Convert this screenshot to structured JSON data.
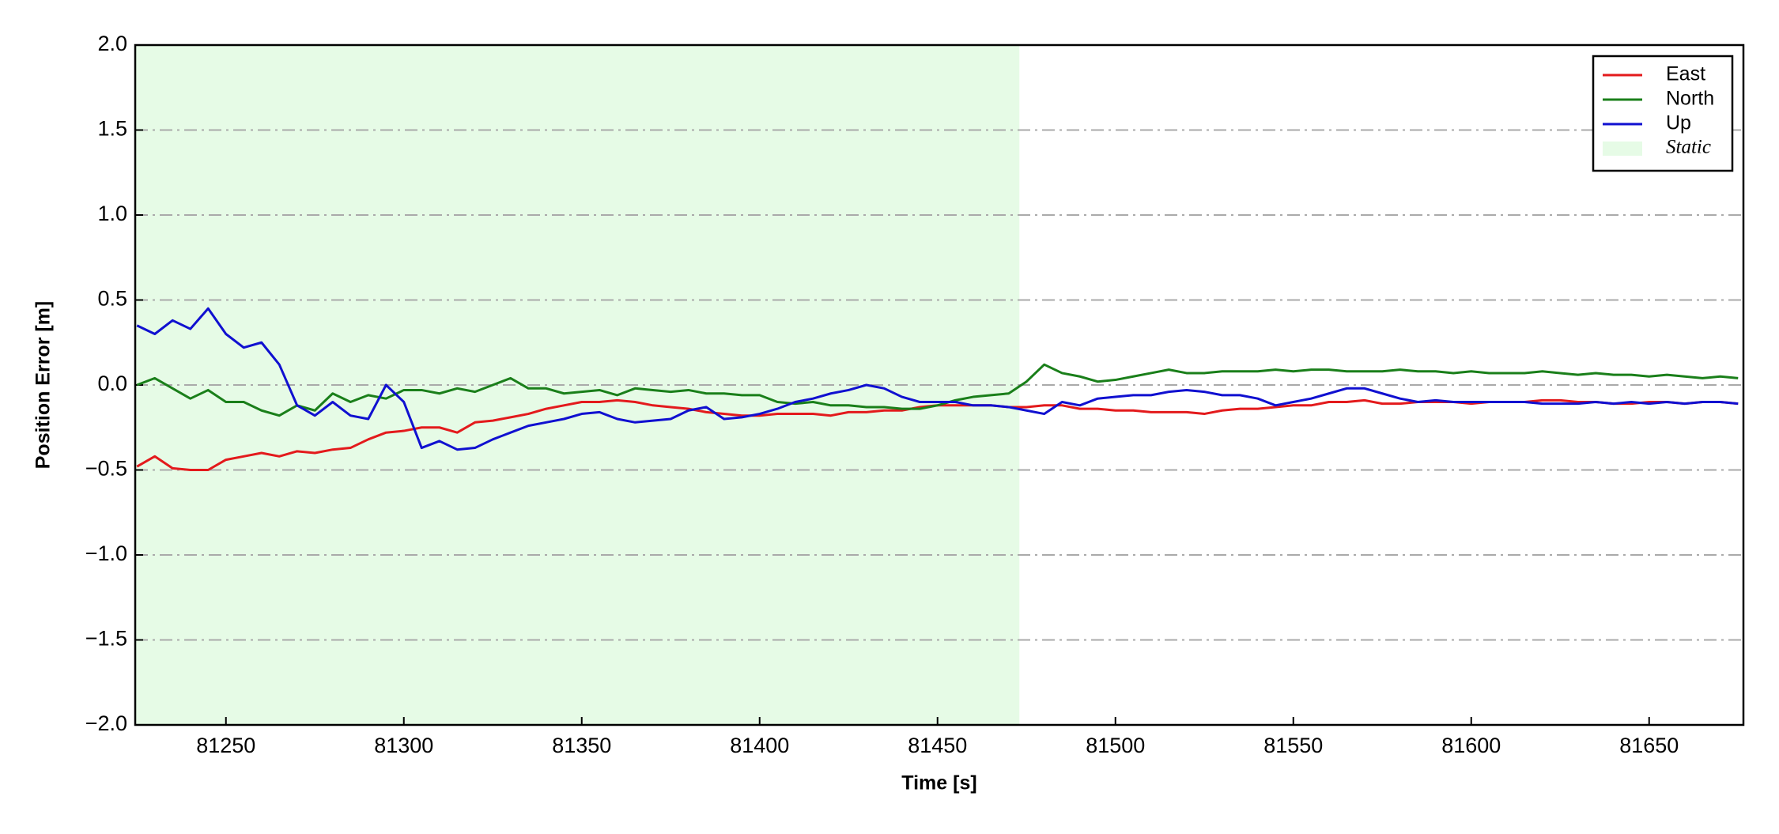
{
  "chart_data": {
    "type": "line",
    "xlabel": "Time [s]",
    "ylabel": "Position Error [m]",
    "x": [
      81225,
      81230,
      81235,
      81240,
      81245,
      81250,
      81255,
      81260,
      81265,
      81270,
      81275,
      81280,
      81285,
      81290,
      81295,
      81300,
      81305,
      81310,
      81315,
      81320,
      81325,
      81330,
      81335,
      81340,
      81345,
      81350,
      81355,
      81360,
      81365,
      81370,
      81375,
      81380,
      81385,
      81390,
      81395,
      81400,
      81405,
      81410,
      81415,
      81420,
      81425,
      81430,
      81435,
      81440,
      81445,
      81450,
      81455,
      81460,
      81465,
      81470,
      81475,
      81480,
      81485,
      81490,
      81495,
      81500,
      81505,
      81510,
      81515,
      81520,
      81525,
      81530,
      81535,
      81540,
      81545,
      81550,
      81555,
      81560,
      81565,
      81570,
      81575,
      81580,
      81585,
      81590,
      81595,
      81600,
      81605,
      81610,
      81615,
      81620,
      81625,
      81630,
      81635,
      81640,
      81645,
      81650,
      81655,
      81660,
      81665,
      81670,
      81675
    ],
    "series": [
      {
        "name": "East",
        "color": "#e31a1c",
        "values": [
          -0.48,
          -0.42,
          -0.49,
          -0.5,
          -0.5,
          -0.44,
          -0.42,
          -0.4,
          -0.42,
          -0.39,
          -0.4,
          -0.38,
          -0.37,
          -0.32,
          -0.28,
          -0.27,
          -0.25,
          -0.25,
          -0.28,
          -0.22,
          -0.21,
          -0.19,
          -0.17,
          -0.14,
          -0.12,
          -0.1,
          -0.1,
          -0.09,
          -0.1,
          -0.12,
          -0.13,
          -0.14,
          -0.16,
          -0.17,
          -0.18,
          -0.18,
          -0.17,
          -0.17,
          -0.17,
          -0.18,
          -0.16,
          -0.16,
          -0.15,
          -0.15,
          -0.13,
          -0.12,
          -0.12,
          -0.12,
          -0.12,
          -0.13,
          -0.13,
          -0.12,
          -0.12,
          -0.14,
          -0.14,
          -0.15,
          -0.15,
          -0.16,
          -0.16,
          -0.16,
          -0.17,
          -0.15,
          -0.14,
          -0.14,
          -0.13,
          -0.12,
          -0.12,
          -0.1,
          -0.1,
          -0.09,
          -0.11,
          -0.11,
          -0.1,
          -0.1,
          -0.1,
          -0.11,
          -0.1,
          -0.1,
          -0.1,
          -0.09,
          -0.09,
          -0.1,
          -0.1,
          -0.11,
          -0.11,
          -0.1,
          -0.1,
          -0.11,
          -0.1,
          -0.1,
          -0.11
        ]
      },
      {
        "name": "North",
        "color": "#1a7f1a",
        "values": [
          0.0,
          0.04,
          -0.02,
          -0.08,
          -0.03,
          -0.1,
          -0.1,
          -0.15,
          -0.18,
          -0.12,
          -0.15,
          -0.05,
          -0.1,
          -0.06,
          -0.08,
          -0.03,
          -0.03,
          -0.05,
          -0.02,
          -0.04,
          0.0,
          0.04,
          -0.02,
          -0.02,
          -0.05,
          -0.04,
          -0.03,
          -0.06,
          -0.02,
          -0.03,
          -0.04,
          -0.03,
          -0.05,
          -0.05,
          -0.06,
          -0.06,
          -0.1,
          -0.11,
          -0.1,
          -0.12,
          -0.12,
          -0.13,
          -0.13,
          -0.14,
          -0.14,
          -0.12,
          -0.09,
          -0.07,
          -0.06,
          -0.05,
          0.02,
          0.12,
          0.07,
          0.05,
          0.02,
          0.03,
          0.05,
          0.07,
          0.09,
          0.07,
          0.07,
          0.08,
          0.08,
          0.08,
          0.09,
          0.08,
          0.09,
          0.09,
          0.08,
          0.08,
          0.08,
          0.09,
          0.08,
          0.08,
          0.07,
          0.08,
          0.07,
          0.07,
          0.07,
          0.08,
          0.07,
          0.06,
          0.07,
          0.06,
          0.06,
          0.05,
          0.06,
          0.05,
          0.04,
          0.05,
          0.04
        ]
      },
      {
        "name": "Up",
        "color": "#1010d0",
        "values": [
          0.35,
          0.3,
          0.38,
          0.33,
          0.45,
          0.3,
          0.22,
          0.25,
          0.12,
          -0.12,
          -0.18,
          -0.1,
          -0.18,
          -0.2,
          0.0,
          -0.1,
          -0.37,
          -0.33,
          -0.38,
          -0.37,
          -0.32,
          -0.28,
          -0.24,
          -0.22,
          -0.2,
          -0.17,
          -0.16,
          -0.2,
          -0.22,
          -0.21,
          -0.2,
          -0.15,
          -0.13,
          -0.2,
          -0.19,
          -0.17,
          -0.14,
          -0.1,
          -0.08,
          -0.05,
          -0.03,
          0.0,
          -0.02,
          -0.07,
          -0.1,
          -0.1,
          -0.1,
          -0.12,
          -0.12,
          -0.13,
          -0.15,
          -0.17,
          -0.1,
          -0.12,
          -0.08,
          -0.07,
          -0.06,
          -0.06,
          -0.04,
          -0.03,
          -0.04,
          -0.06,
          -0.06,
          -0.08,
          -0.12,
          -0.1,
          -0.08,
          -0.05,
          -0.02,
          -0.02,
          -0.05,
          -0.08,
          -0.1,
          -0.09,
          -0.1,
          -0.1,
          -0.1,
          -0.1,
          -0.1,
          -0.11,
          -0.11,
          -0.11,
          -0.1,
          -0.11,
          -0.1,
          -0.11,
          -0.1,
          -0.11,
          -0.1,
          -0.1,
          -0.11
        ]
      }
    ],
    "static": {
      "name": "Static",
      "color": "#e6fbe6",
      "x": [
        81224.5,
        81473
      ]
    },
    "xlim": [
      81224.5,
      81676.5
    ],
    "xticks": [
      81250,
      81300,
      81350,
      81400,
      81450,
      81500,
      81550,
      81600,
      81650
    ],
    "ylim": [
      -2,
      2
    ],
    "yticks": [
      {
        "value": -2,
        "label": "−2.0"
      },
      {
        "value": -1.5,
        "label": "−1.5"
      },
      {
        "value": -1,
        "label": "−1.0"
      },
      {
        "value": -0.5,
        "label": "−0.5"
      },
      {
        "value": 0,
        "label": "0.0"
      },
      {
        "value": 0.5,
        "label": "0.5"
      },
      {
        "value": 1,
        "label": "1.0"
      },
      {
        "value": 1.5,
        "label": "1.5"
      },
      {
        "value": 2,
        "label": "2.0"
      }
    ],
    "grid": true,
    "legend": "upper right"
  }
}
